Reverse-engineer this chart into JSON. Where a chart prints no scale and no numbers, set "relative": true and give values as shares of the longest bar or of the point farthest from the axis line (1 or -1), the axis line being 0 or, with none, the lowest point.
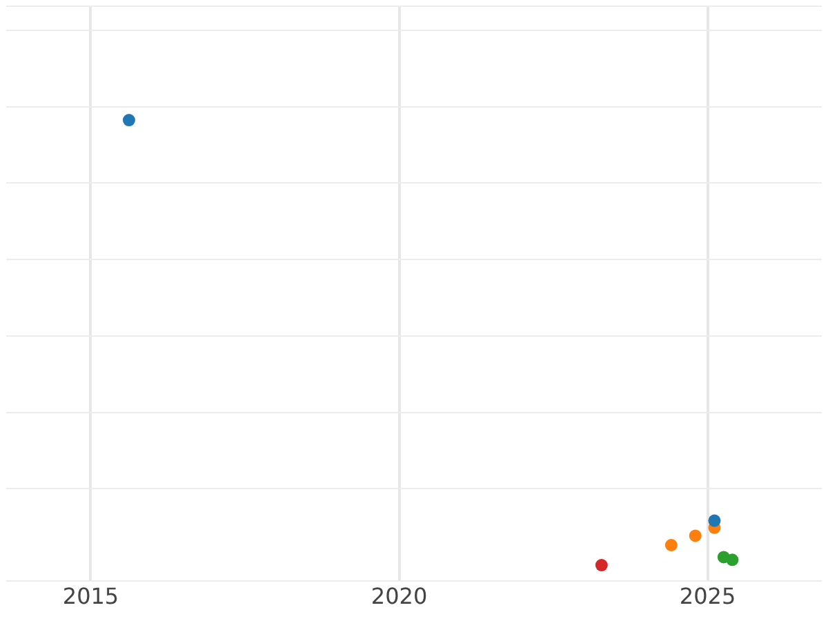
{
  "chart_data": {
    "type": "scatter",
    "relative": true,
    "xlim": [
      2013.63,
      2026.85
    ],
    "xticks": [
      2015,
      2020,
      2025
    ],
    "grid": true,
    "legend": false,
    "marker": "circle",
    "tick_labels": "x",
    "series": [
      {
        "color": "#1f77b4",
        "x": [
          2015.62,
          2025.11
        ],
        "values": [
          1,
          0.1
        ]
      },
      {
        "color": "#ff7f0e",
        "x": [
          2024.41,
          2024.8,
          2025.11
        ],
        "values": [
          0.045,
          0.066,
          0.084
        ]
      },
      {
        "color": "#2ca02c",
        "x": [
          2025.26,
          2025.4
        ],
        "values": [
          0.018,
          0.012
        ]
      },
      {
        "color": "#d62728",
        "x": [
          2023.28
        ],
        "values": [
          0
        ]
      }
    ]
  }
}
